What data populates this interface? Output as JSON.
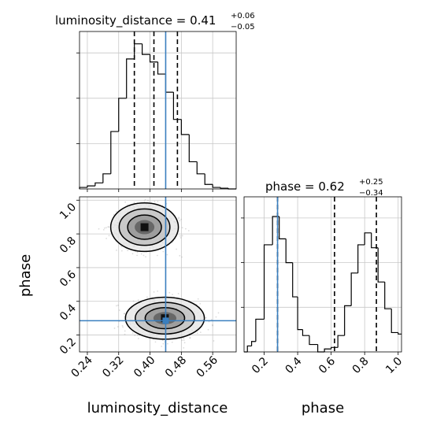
{
  "colors": {
    "truth": "#3a7fbf",
    "hist": "#000000",
    "quantile": "#000000",
    "grid": "#c8c8c8",
    "contour": "#000000"
  },
  "chart_data": [
    {
      "type": "histogram",
      "panel": "top-left",
      "title_param": "luminosity_distance",
      "title_median": "0.41",
      "title_plus": "+0.06",
      "title_minus": "−0.05",
      "xlim": [
        0.22,
        0.62
      ],
      "ylim": [
        0,
        1
      ],
      "bin_edges": [
        0.22,
        0.24,
        0.26,
        0.28,
        0.3,
        0.32,
        0.34,
        0.36,
        0.38,
        0.4,
        0.42,
        0.44,
        0.46,
        0.48,
        0.5,
        0.52,
        0.54,
        0.56,
        0.58,
        0.6,
        0.62
      ],
      "counts": [
        0.01,
        0.02,
        0.04,
        0.1,
        0.38,
        0.6,
        0.86,
        0.96,
        0.89,
        0.84,
        0.76,
        0.64,
        0.46,
        0.36,
        0.18,
        0.1,
        0.03,
        0.01,
        0.005,
        0.0
      ],
      "quantiles": [
        0.36,
        0.41,
        0.47
      ],
      "truth": 0.44,
      "grid": true
    },
    {
      "type": "contour",
      "panel": "bottom-left",
      "xlabel": "luminosity_distance",
      "ylabel": "phase",
      "xlim": [
        0.22,
        0.62
      ],
      "ylim": [
        0.1,
        1.02
      ],
      "xticks": [
        "0.24",
        "0.32",
        "0.40",
        "0.48",
        "0.56"
      ],
      "xtick_values": [
        0.24,
        0.32,
        0.4,
        0.48,
        0.56
      ],
      "yticks": [
        "0.2",
        "0.4",
        "0.6",
        "0.8",
        "1.0"
      ],
      "ytick_values": [
        0.2,
        0.4,
        0.6,
        0.8,
        1.0
      ],
      "modes": [
        {
          "cx": 0.386,
          "cy": 0.84,
          "sx": 0.036,
          "sy": 0.06
        },
        {
          "cx": 0.438,
          "cy": 0.3,
          "sx": 0.042,
          "sy": 0.052
        }
      ],
      "truth": {
        "x": 0.44,
        "y": 0.285
      },
      "grid": true
    },
    {
      "type": "histogram",
      "panel": "bottom-right",
      "title_param": "phase",
      "title_median": "0.62",
      "title_plus": "+0.25",
      "title_minus": "−0.34",
      "xlabel": "phase",
      "xlim": [
        0.08,
        1.02
      ],
      "ylim": [
        0,
        1
      ],
      "xticks": [
        "0.2",
        "0.4",
        "0.6",
        "0.8",
        "1.0"
      ],
      "xtick_values": [
        0.2,
        0.4,
        0.6,
        0.8,
        1.0
      ],
      "bin_edges": [
        0.08,
        0.1,
        0.125,
        0.15,
        0.2,
        0.25,
        0.29,
        0.33,
        0.37,
        0.4,
        0.43,
        0.47,
        0.52,
        0.56,
        0.6,
        0.64,
        0.68,
        0.72,
        0.76,
        0.8,
        0.84,
        0.88,
        0.92,
        0.96,
        1.0,
        1.02
      ],
      "counts": [
        0.0,
        0.04,
        0.07,
        0.22,
        0.72,
        0.91,
        0.76,
        0.6,
        0.37,
        0.15,
        0.11,
        0.05,
        0.0,
        0.02,
        0.03,
        0.11,
        0.31,
        0.53,
        0.72,
        0.8,
        0.7,
        0.47,
        0.29,
        0.13,
        0.12
      ],
      "quantiles": [
        0.28,
        0.62,
        0.87
      ],
      "truth": 0.28,
      "grid": true
    }
  ]
}
